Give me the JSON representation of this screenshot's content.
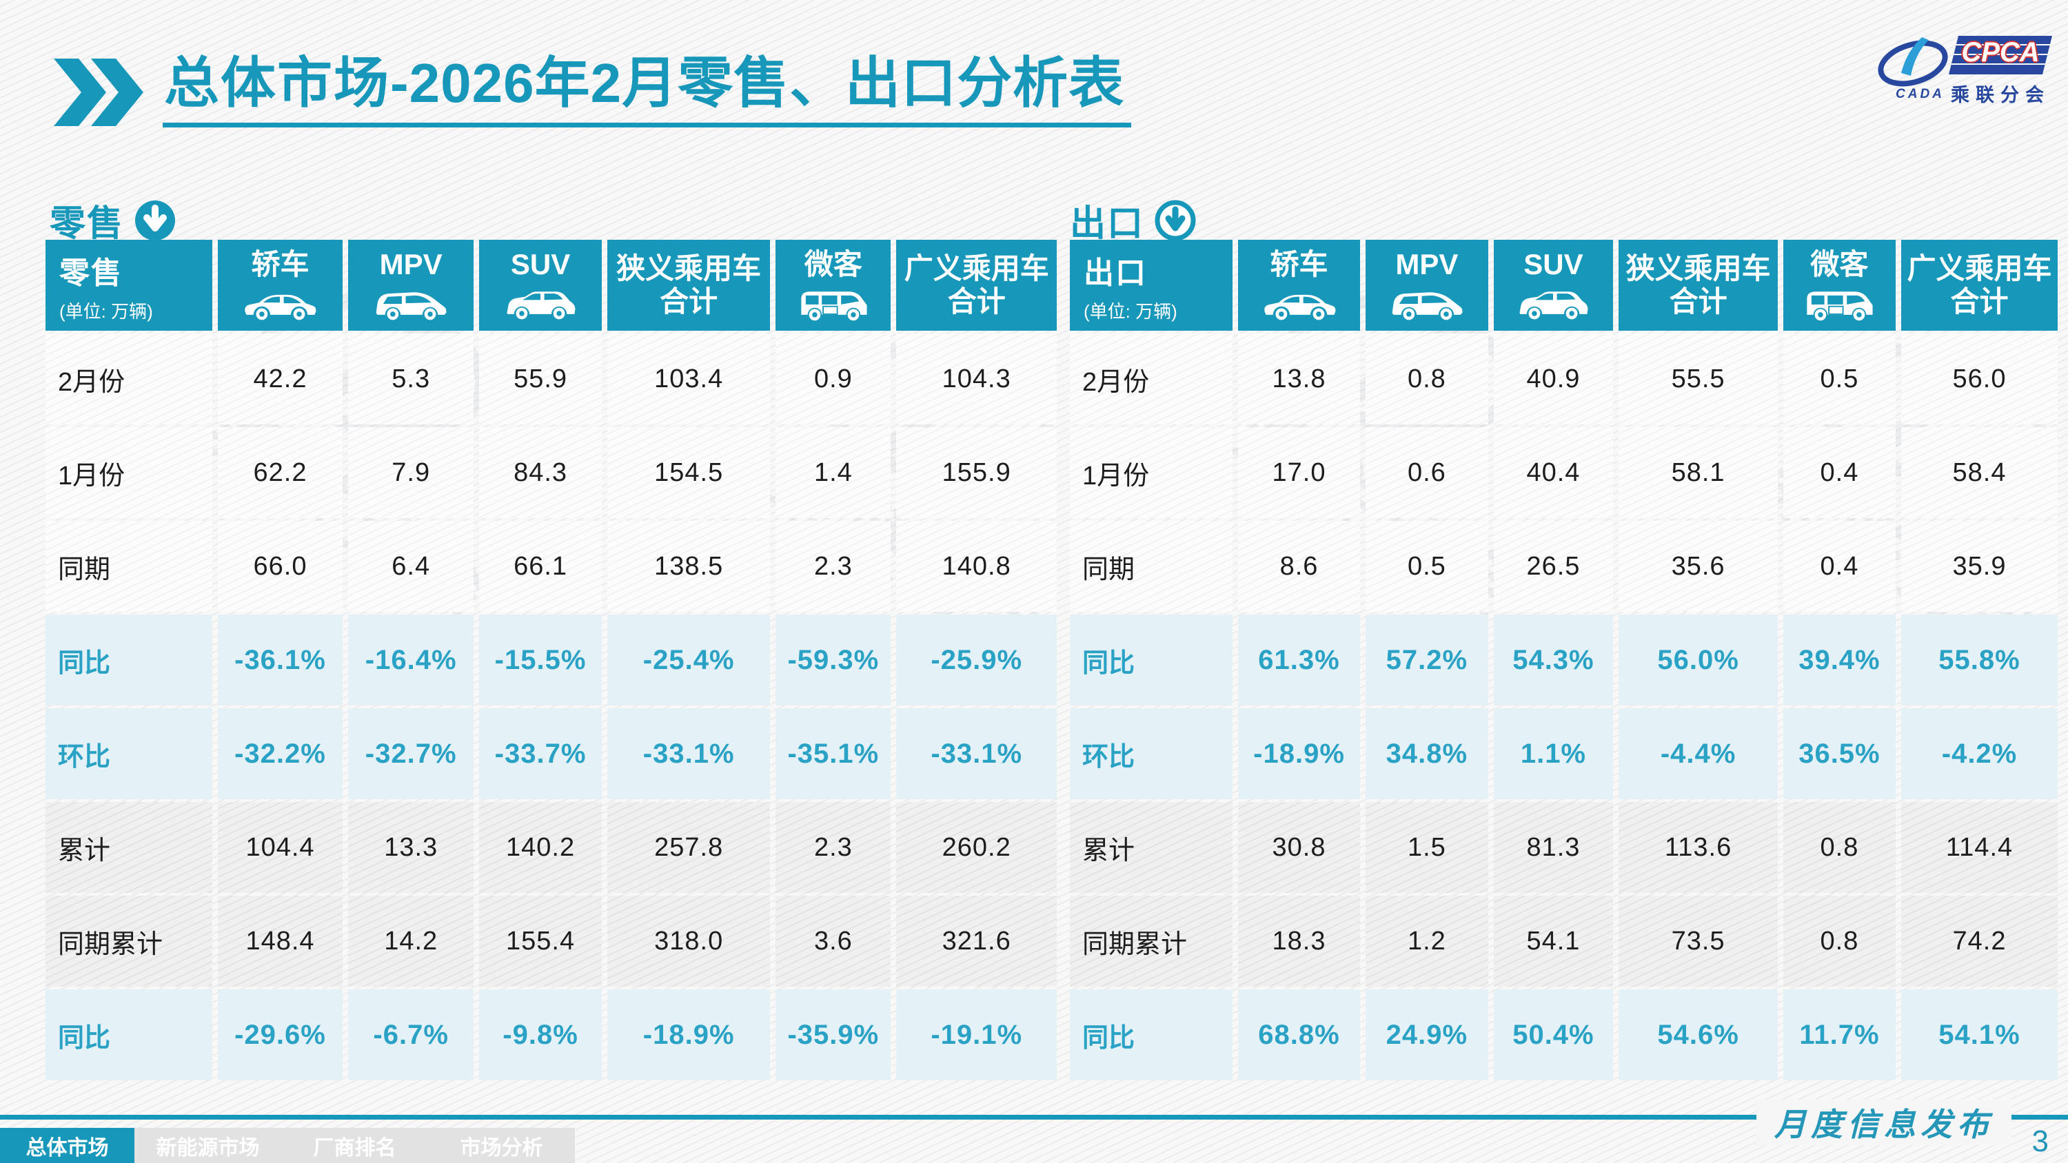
{
  "header": {
    "title_highlight": "总体市场",
    "title_rest": "-2026年2月零售、出口分析表",
    "logo": {
      "cpca": "CPCA",
      "cada": "CADA",
      "subtitle": "乘联分会"
    }
  },
  "colors": {
    "accent": "#1797b9",
    "percent_text": "#2aa2c5",
    "highlight_row_bg": "#e4f1f7",
    "logo_blue": "#27489e",
    "logo_red": "#d23434"
  },
  "tables": [
    {
      "section_label": "零售",
      "unit_label": "(单位: 万辆)",
      "columns": [
        {
          "label": "轿车",
          "icon": "sedan-car-icon"
        },
        {
          "label": "MPV",
          "icon": "mpv-car-icon"
        },
        {
          "label": "SUV",
          "icon": "suv-car-icon"
        },
        {
          "label": "狭义乘用车合计",
          "icon": null
        },
        {
          "label": "微客",
          "icon": "minibus-icon"
        },
        {
          "label": "广义乘用车合计",
          "icon": null
        }
      ],
      "rows": [
        {
          "label": "2月份",
          "style": "plain",
          "values": [
            "42.2",
            "5.3",
            "55.9",
            "103.4",
            "0.9",
            "104.3"
          ]
        },
        {
          "label": "1月份",
          "style": "plain",
          "values": [
            "62.2",
            "7.9",
            "84.3",
            "154.5",
            "1.4",
            "155.9"
          ]
        },
        {
          "label": "同期",
          "style": "plain",
          "values": [
            "66.0",
            "6.4",
            "66.1",
            "138.5",
            "2.3",
            "140.8"
          ]
        },
        {
          "label": "同比",
          "style": "highlight",
          "values": [
            "-36.1%",
            "-16.4%",
            "-15.5%",
            "-25.4%",
            "-59.3%",
            "-25.9%"
          ]
        },
        {
          "label": "环比",
          "style": "highlight",
          "values": [
            "-32.2%",
            "-32.7%",
            "-33.7%",
            "-33.1%",
            "-35.1%",
            "-33.1%"
          ]
        },
        {
          "label": "累计",
          "style": "hatch",
          "values": [
            "104.4",
            "13.3",
            "140.2",
            "257.8",
            "2.3",
            "260.2"
          ]
        },
        {
          "label": "同期累计",
          "style": "hatch",
          "values": [
            "148.4",
            "14.2",
            "155.4",
            "318.0",
            "3.6",
            "321.6"
          ]
        },
        {
          "label": "同比",
          "style": "highlight",
          "values": [
            "-29.6%",
            "-6.7%",
            "-9.8%",
            "-18.9%",
            "-35.9%",
            "-19.1%"
          ]
        }
      ]
    },
    {
      "section_label": "出口",
      "unit_label": "(单位: 万辆)",
      "columns": [
        {
          "label": "轿车",
          "icon": "sedan-car-icon"
        },
        {
          "label": "MPV",
          "icon": "mpv-car-icon"
        },
        {
          "label": "SUV",
          "icon": "suv-car-icon"
        },
        {
          "label": "狭义乘用车合计",
          "icon": null
        },
        {
          "label": "微客",
          "icon": "minibus-icon"
        },
        {
          "label": "广义乘用车合计",
          "icon": null
        }
      ],
      "rows": [
        {
          "label": "2月份",
          "style": "plain",
          "values": [
            "13.8",
            "0.8",
            "40.9",
            "55.5",
            "0.5",
            "56.0"
          ]
        },
        {
          "label": "1月份",
          "style": "plain",
          "values": [
            "17.0",
            "0.6",
            "40.4",
            "58.1",
            "0.4",
            "58.4"
          ]
        },
        {
          "label": "同期",
          "style": "plain",
          "values": [
            "8.6",
            "0.5",
            "26.5",
            "35.6",
            "0.4",
            "35.9"
          ]
        },
        {
          "label": "同比",
          "style": "highlight",
          "values": [
            "61.3%",
            "57.2%",
            "54.3%",
            "56.0%",
            "39.4%",
            "55.8%"
          ]
        },
        {
          "label": "环比",
          "style": "highlight",
          "values": [
            "-18.9%",
            "34.8%",
            "1.1%",
            "-4.4%",
            "36.5%",
            "-4.2%"
          ]
        },
        {
          "label": "累计",
          "style": "hatch",
          "values": [
            "30.8",
            "1.5",
            "81.3",
            "113.6",
            "0.8",
            "114.4"
          ]
        },
        {
          "label": "同期累计",
          "style": "hatch",
          "values": [
            "18.3",
            "1.2",
            "54.1",
            "73.5",
            "0.8",
            "74.2"
          ]
        },
        {
          "label": "同比",
          "style": "highlight",
          "values": [
            "68.8%",
            "24.9%",
            "50.4%",
            "54.6%",
            "11.7%",
            "54.1%"
          ]
        }
      ]
    }
  ],
  "footer": {
    "script_label": "月度信息发布",
    "page_number": "3",
    "tabs": [
      {
        "label": "总体市场",
        "active": true
      },
      {
        "label": "新能源市场",
        "active": false
      },
      {
        "label": "厂商排名",
        "active": false
      },
      {
        "label": "市场分析",
        "active": false
      }
    ]
  },
  "watermark_text": "乘联分会"
}
